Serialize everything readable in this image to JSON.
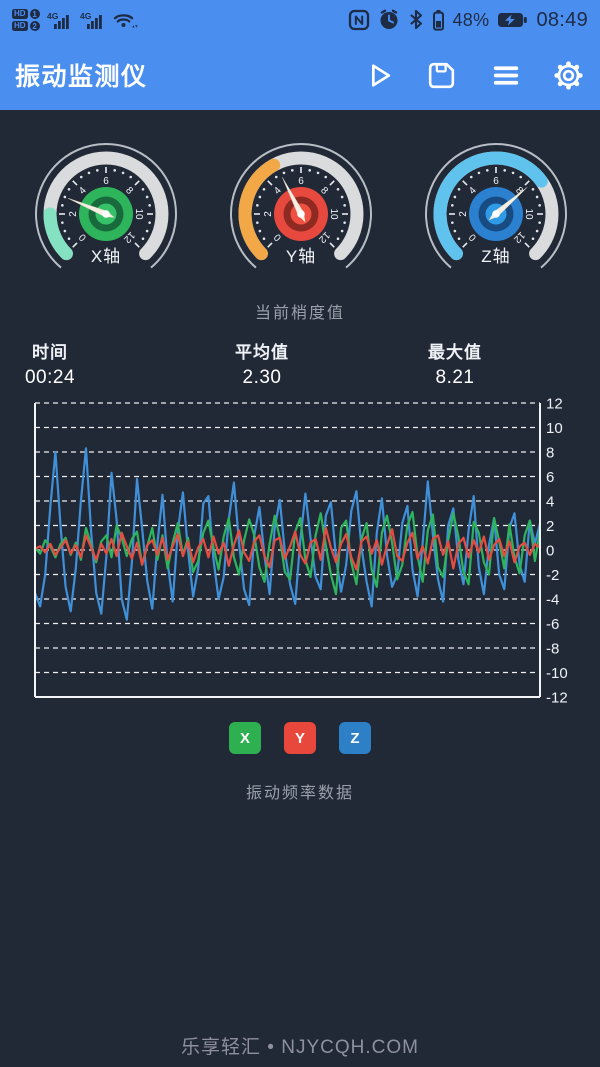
{
  "colors": {
    "bar_blue": "#4a8ef0",
    "background": "#222936",
    "status_icon": "#1e2b44",
    "muted_text": "#99a0aa"
  },
  "status_bar": {
    "sims": [
      {
        "badge": "HD",
        "num": "1"
      },
      {
        "badge": "HD",
        "num": "2"
      }
    ],
    "network_label": "4G",
    "battery_pct": "48%",
    "time": "08:49",
    "icons": [
      "hd-badge",
      "signal-bars",
      "signal-bars",
      "wifi-icon",
      "nfc-icon",
      "alarm-icon",
      "bluetooth-icon",
      "battery-icon",
      "charging-battery-icon"
    ]
  },
  "app_bar": {
    "title": "振动监测仪",
    "icons": [
      "play-icon",
      "save-icon",
      "menu-icon",
      "settings-icon"
    ]
  },
  "gauges": [
    {
      "label": "X轴",
      "value": 3.0,
      "range_min": 0,
      "range_max": 12,
      "tick_labels": [
        0,
        2,
        4,
        6,
        8,
        10,
        12
      ],
      "colored_to": 2.0,
      "arc_color": "#84e2c2",
      "track_color": "#d9dbdd",
      "center_outer": "#2eb55c",
      "center_ring": "#186a3d",
      "center_inner": "#35c168"
    },
    {
      "label": "Y轴",
      "value": 4.8,
      "range_min": 0,
      "range_max": 12,
      "tick_labels": [
        0,
        2,
        4,
        6,
        8,
        10,
        12
      ],
      "colored_to": 4.7,
      "arc_color": "#f2a847",
      "track_color": "#d9dbdd",
      "center_outer": "#e7493e",
      "center_ring": "#8e2a22",
      "center_inner": "#ef5243"
    },
    {
      "label": "Z轴",
      "value": 8.2,
      "range_min": 0,
      "range_max": 12,
      "tick_labels": [
        0,
        2,
        4,
        6,
        8,
        10,
        12
      ],
      "colored_to": 8.4,
      "arc_color": "#5fc3ee",
      "track_color": "#d9dbdd",
      "center_outer": "#2b80d0",
      "center_ring": "#174b82",
      "center_inner": "#2f9be6"
    }
  ],
  "captions": {
    "gauge_section": "当前梢度值",
    "chart_section": "振动频率数据"
  },
  "stats": {
    "items": [
      {
        "label": "时间",
        "value": "00:24"
      },
      {
        "label": "平均值",
        "value": "2.30"
      },
      {
        "label": "最大值",
        "value": "8.21"
      }
    ]
  },
  "chart_data": {
    "type": "line",
    "title": "",
    "xlabel": "",
    "ylabel": "",
    "ylim": [
      -12,
      12
    ],
    "yticks": [
      12,
      10,
      8,
      6,
      4,
      2,
      0,
      -2,
      -4,
      -6,
      -8,
      -10,
      -12
    ],
    "ytick_side": "right",
    "grid": "dashed-horizontal",
    "x_count": 100,
    "draw_order": [
      "Z",
      "X",
      "Y"
    ],
    "series": [
      {
        "name": "X",
        "color": "#2eb45c",
        "values": [
          0.2,
          -0.3,
          0.8,
          0.3,
          -0.6,
          0.5,
          1.0,
          -0.4,
          0.6,
          -0.8,
          1.8,
          0.4,
          -1.0,
          0.7,
          1.2,
          -0.6,
          2.0,
          1.0,
          -0.5,
          0.9,
          1.5,
          -1.2,
          0.3,
          1.8,
          -0.8,
          1.2,
          -1.5,
          0.6,
          2.2,
          -0.4,
          1.0,
          -1.8,
          -0.9,
          1.4,
          2.4,
          0.2,
          -1.6,
          1.1,
          2.6,
          -0.6,
          -2.0,
          0.8,
          2.5,
          1.2,
          -1.4,
          -2.6,
          0.5,
          2.8,
          1.0,
          -1.8,
          -2.4,
          1.5,
          2.6,
          -0.8,
          -2.2,
          1.2,
          3.0,
          0.4,
          -2.0,
          -3.6,
          1.8,
          2.4,
          -1.0,
          -2.8,
          0.9,
          2.2,
          -1.6,
          -3.0,
          1.4,
          2.8,
          0.6,
          -2.4,
          -1.2,
          2.0,
          3.1,
          -0.5,
          -2.6,
          1.6,
          2.9,
          -1.4,
          -2.2,
          0.8,
          3.0,
          1.1,
          -1.8,
          -2.8,
          2.3,
          1.4,
          -1.0,
          -2.0,
          2.6,
          0.7,
          -1.5,
          2.1,
          -0.6,
          -1.9,
          1.2,
          2.4,
          -0.9,
          1.6
        ]
      },
      {
        "name": "Y",
        "color": "#e44d42",
        "values": [
          0.1,
          0.3,
          -0.2,
          0.5,
          -0.4,
          0.2,
          0.8,
          -0.3,
          0.4,
          -0.6,
          1.2,
          0.2,
          -0.8,
          0.5,
          -0.3,
          0.9,
          -0.5,
          1.4,
          0.3,
          -0.7,
          0.6,
          -1.2,
          0.4,
          0.8,
          -0.4,
          1.0,
          -0.8,
          0.3,
          1.3,
          -0.5,
          0.7,
          -1.0,
          0.2,
          0.9,
          -0.6,
          1.1,
          -0.3,
          0.6,
          -1.3,
          0.4,
          1.6,
          -0.2,
          -0.9,
          0.7,
          1.2,
          -0.5,
          -1.4,
          0.8,
          1.0,
          -0.7,
          0.3,
          1.5,
          -0.4,
          -1.1,
          0.6,
          0.9,
          -0.8,
          1.8,
          0.2,
          -1.0,
          0.5,
          1.3,
          -0.6,
          -1.6,
          0.7,
          1.1,
          -0.3,
          0.8,
          -1.2,
          0.4,
          1.7,
          -0.5,
          -0.9,
          0.6,
          1.4,
          -0.7,
          0.3,
          -1.1,
          0.9,
          1.2,
          -0.4,
          0.7,
          -1.5,
          0.5,
          1.0,
          -0.6,
          0.8,
          -0.2,
          1.1,
          -0.8,
          0.4,
          0.9,
          -0.5,
          0.7,
          -1.0,
          0.3,
          0.6,
          -0.4,
          0.5,
          0.2
        ]
      },
      {
        "name": "Z",
        "color": "#3f90d8",
        "values": [
          -3.5,
          -4.6,
          -2.0,
          3.5,
          8.0,
          2.0,
          -3.0,
          -5.0,
          -1.5,
          4.0,
          8.3,
          1.5,
          -3.5,
          -5.2,
          -0.5,
          6.3,
          2.5,
          -4.0,
          -5.7,
          -1.0,
          5.8,
          1.8,
          -2.5,
          -4.8,
          0.5,
          4.5,
          -1.0,
          -4.2,
          1.5,
          4.7,
          0.0,
          -3.8,
          -1.5,
          3.8,
          4.4,
          -0.8,
          -4.0,
          -2.2,
          2.5,
          5.5,
          0.6,
          -3.2,
          -4.5,
          1.2,
          3.5,
          -0.5,
          -3.6,
          1.8,
          4.1,
          -0.2,
          -2.8,
          -4.4,
          0.8,
          4.6,
          1.0,
          -2.2,
          -3.2,
          2.8,
          3.9,
          -0.6,
          -3.4,
          -1.2,
          3.2,
          4.8,
          0.2,
          -2.6,
          -4.6,
          1.4,
          4.2,
          -0.4,
          -3.0,
          -2.0,
          2.2,
          3.6,
          -1.6,
          -3.8,
          0.6,
          5.6,
          1.2,
          -2.4,
          -4.2,
          2.0,
          3.4,
          -0.8,
          -2.8,
          1.6,
          4.4,
          -1.4,
          -3.6,
          0.4,
          2.6,
          -2.0,
          -3.2,
          1.8,
          3.0,
          -1.2,
          -2.6,
          2.4,
          0.5,
          2.2
        ]
      }
    ]
  },
  "legend": [
    {
      "label": "X",
      "color": "#2eb050"
    },
    {
      "label": "Y",
      "color": "#e8473c"
    },
    {
      "label": "Z",
      "color": "#2d7fc6"
    }
  ],
  "footer": {
    "text": "乐享轻汇 • NJYCQH.COM"
  }
}
